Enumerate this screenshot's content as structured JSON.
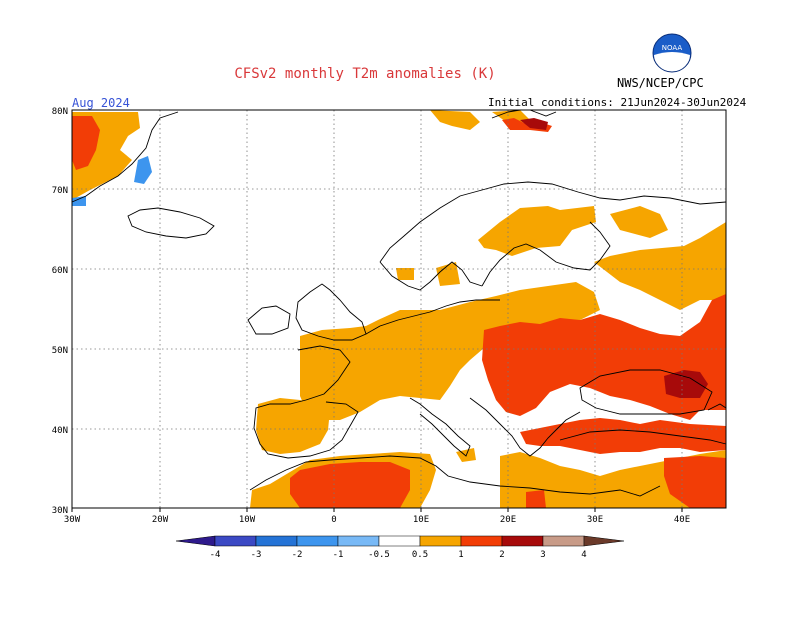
{
  "header": {
    "title": "CFSv2 monthly T2m anomalies (K)",
    "month": "Aug 2024",
    "initial_conditions": "Initial conditions: 21Jun2024-30Jun2024",
    "org": "NWS/NCEP/CPC",
    "logo_text": "NOAA"
  },
  "map": {
    "lon_labels": [
      "30W",
      "20W",
      "10W",
      "0",
      "10E",
      "20E",
      "30E",
      "40E"
    ],
    "lat_labels": [
      "80N",
      "70N",
      "60N",
      "50N",
      "40N",
      "30N"
    ]
  },
  "colorbar": {
    "labels": [
      "-4",
      "-3",
      "-2",
      "-1",
      "-0.5",
      "0.5",
      "1",
      "2",
      "3",
      "4"
    ],
    "colors": [
      "#2e1a8c",
      "#3b49c4",
      "#2473d6",
      "#3d95ee",
      "#78b9f6",
      "#ffffff",
      "#f6a500",
      "#f23d06",
      "#a70a0a",
      "#c89b88",
      "#6b3a2a"
    ]
  },
  "colors": {
    "title": "#d9383a",
    "month": "#3753d6",
    "anomaly_0_5_1": "#f6a500",
    "anomaly_1_2": "#f23d06",
    "anomaly_2_3": "#a70a0a",
    "anomaly_neg": "#3d95ee"
  }
}
